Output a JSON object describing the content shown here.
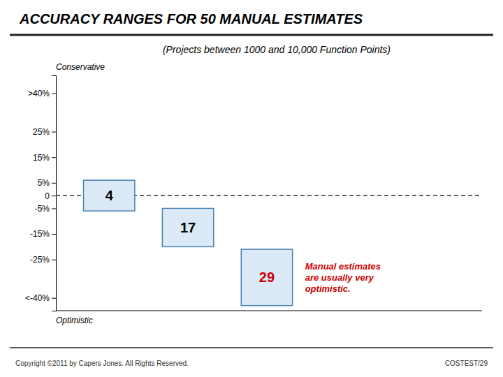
{
  "chart_data": {
    "type": "bar",
    "title": "ACCURACY RANGES FOR 50 MANUAL ESTIMATES",
    "subtitle": "(Projects between 1000 and 10,000 Function Points)",
    "conservative_label": "Conservative",
    "optimistic_label": "Optimistic",
    "categories": [
      null,
      null,
      null
    ],
    "low": [
      -6,
      -20,
      -43
    ],
    "high": [
      6,
      -5,
      -21
    ],
    "counts": [
      4,
      17,
      29
    ],
    "count_colors": [
      "#000000",
      "#000000",
      "#cc0000"
    ],
    "dashed_line": 0,
    "ylim": [
      -45,
      47
    ],
    "yticks": [
      {
        "value": 40,
        "label": ">40%"
      },
      {
        "value": 25,
        "label": "25%"
      },
      {
        "value": 15,
        "label": "15%"
      },
      {
        "value": 5,
        "label": "5%"
      },
      0,
      {
        "value": -5,
        "label": "-5%"
      },
      {
        "value": -15,
        "label": "-15%"
      },
      {
        "value": -25,
        "label": "-25%"
      },
      {
        "value": -40,
        "label": "<-40%"
      }
    ],
    "annotation": {
      "text": "Manual estimates\nare usually very\noptimistic.",
      "color": "#cc0000"
    },
    "copyright_text": "Copyright ©2011 by Capers Jones.  All Rights Reserved.",
    "costest_text": "COSTEST/29"
  }
}
